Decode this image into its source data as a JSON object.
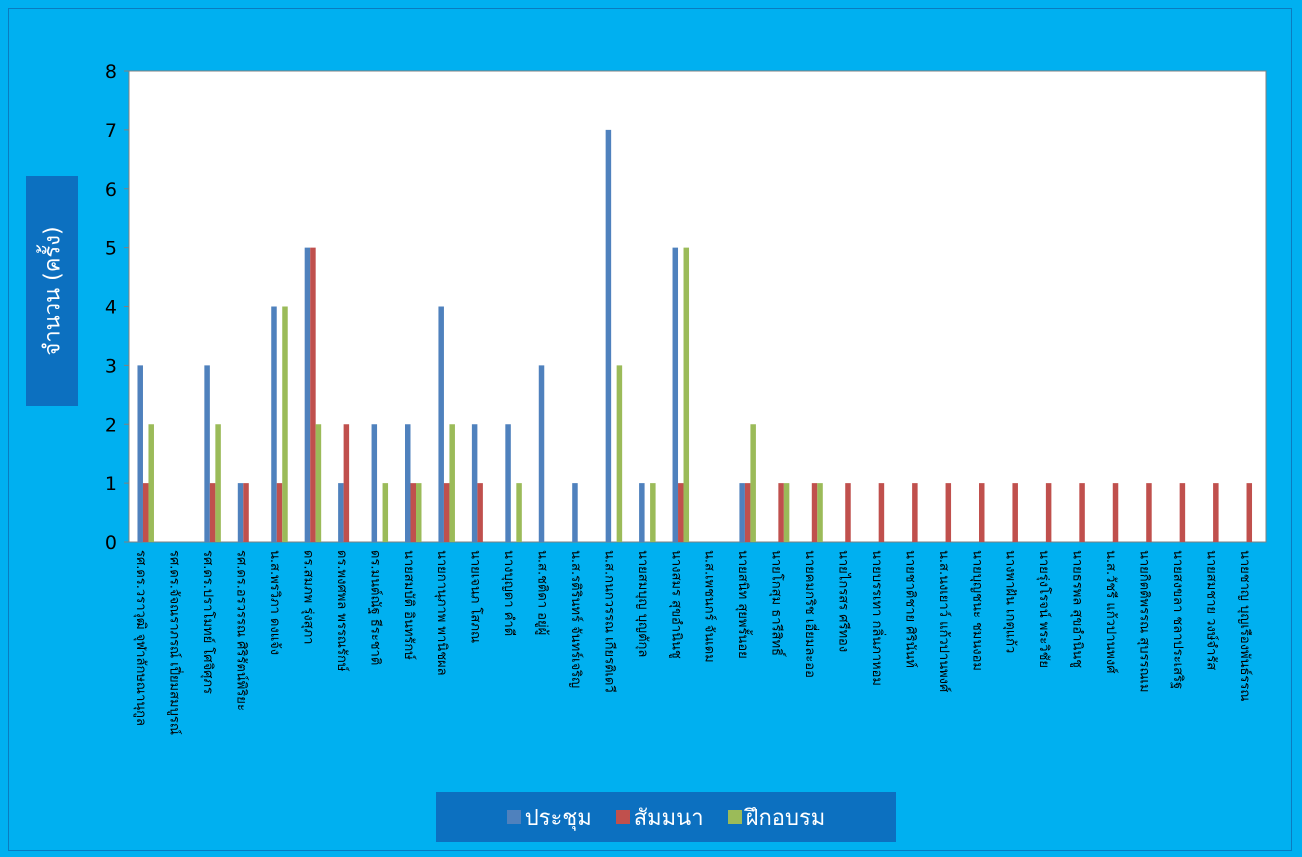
{
  "chart_data": {
    "type": "bar",
    "ylabel": "จำนวน (ครั้ง)",
    "ylim": [
      0,
      8
    ],
    "yticks": [
      "0",
      "1",
      "2",
      "3",
      "4",
      "5",
      "6",
      "7",
      "8"
    ],
    "categories": [
      "รศ.ดร.วราวุฒิ จุฬาลักษณานุกูล",
      "รศ.ดร.จัจณราภรณ์ เปี่ยมสมบูรณ์",
      "รศ.ดร.ปราโมทย์ โศจิศุภร",
      "รศ.ดร.อรวรรณ ศิริรัตน์พิริยะ",
      "น.ส.พรวิภา ดงแจ้ง",
      "ดร.สมภพ รุ่งสุภา",
      "ดร.พงศพล พรรณรักษ์",
      "ดร.มนต์ณัฐ ธีระชาติ",
      "นายสมบัติ อินทรักษ์",
      "นายกานุภาพ พานิชผล",
      "นายเจนภ โสภณ",
      "นางบุญดา คำดี",
      "น.ส.ชติดา อยู่ผู้",
      "น.ส.รติรินทร์ จันทร์เจริญ",
      "น.ส.กนกวรรณ เกียรติเดวี",
      "นายสมบุญ บุญตักุล",
      "นางสมร สุขอำนินชู",
      "น.ส.เพชนกร์ จันเดม",
      "นายสนิท สุยพรั้นอย",
      "นายโกสุม ธารีสิทธิ์",
      "นายคมกริช เอี่ยมละออ",
      "นายไกรสร ศรีทอง",
      "นายบรรเทา กลิ่นภาหอม",
      "นายชาติชาย ศิรินันท์",
      "น.ส.นงเยาว์ แก้วปานพงศ์",
      "นายบุญชนะ ชมนงอม",
      "นางพาฝัน เกตุแก้ว",
      "นายรุ่งโรจน์ พระวิชัย",
      "นายธรพล สุขอำนินชู",
      "น.ส.วัชรี แก้วปานพงศ์",
      "นายกิตติพรรณ สุบรรณเม",
      "นายสงขลา ชลาประเสริฐ",
      "นายสมชาย วงษ์จำรัส",
      "นายชาญ บุญเรืองพันธ์รรณ"
    ],
    "series": [
      {
        "name": "ประชุม",
        "color": "#4f81bd",
        "values": [
          3,
          0,
          3,
          1,
          4,
          5,
          1,
          2,
          2,
          4,
          2,
          2,
          3,
          1,
          7,
          1,
          5,
          0,
          1,
          0,
          0,
          0,
          0,
          0,
          0,
          0,
          0,
          0,
          0,
          0,
          0,
          0,
          0,
          0
        ]
      },
      {
        "name": "สัมมนา",
        "color": "#c0504d",
        "values": [
          1,
          0,
          1,
          1,
          1,
          5,
          2,
          0,
          1,
          1,
          1,
          0,
          0,
          0,
          0,
          0,
          1,
          0,
          1,
          1,
          1,
          1,
          1,
          1,
          1,
          1,
          1,
          1,
          1,
          1,
          1,
          1,
          1,
          1
        ]
      },
      {
        "name": "ฝึกอบรม",
        "color": "#9bbb59",
        "values": [
          2,
          0,
          2,
          0,
          4,
          2,
          0,
          1,
          1,
          2,
          0,
          1,
          0,
          0,
          3,
          1,
          5,
          0,
          2,
          1,
          1,
          0,
          0,
          0,
          0,
          0,
          0,
          0,
          0,
          0,
          0,
          0,
          0,
          0
        ]
      }
    ]
  }
}
